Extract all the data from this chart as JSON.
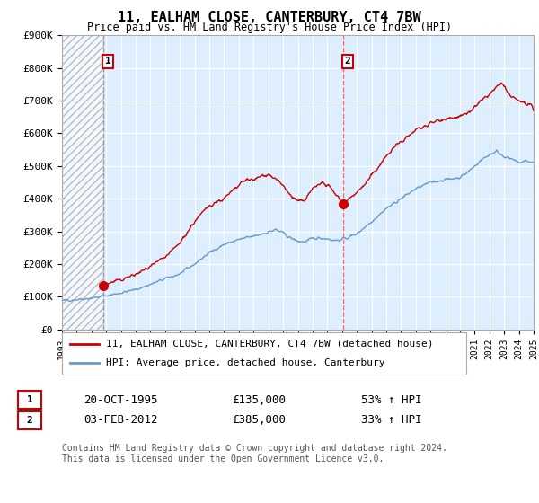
{
  "title": "11, EALHAM CLOSE, CANTERBURY, CT4 7BW",
  "subtitle": "Price paid vs. HM Land Registry's House Price Index (HPI)",
  "legend_line1": "11, EALHAM CLOSE, CANTERBURY, CT4 7BW (detached house)",
  "legend_line2": "HPI: Average price, detached house, Canterbury",
  "footnote": "Contains HM Land Registry data © Crown copyright and database right 2024.\nThis data is licensed under the Open Government Licence v3.0.",
  "transaction1_label": "1",
  "transaction1_date": "20-OCT-1995",
  "transaction1_price": "£135,000",
  "transaction1_hpi": "53% ↑ HPI",
  "transaction2_label": "2",
  "transaction2_date": "03-FEB-2012",
  "transaction2_price": "£385,000",
  "transaction2_hpi": "33% ↑ HPI",
  "sale1_year": 1995.8,
  "sale1_price": 135000,
  "sale2_year": 2012.09,
  "sale2_price": 385000,
  "vline1_year": 1995.8,
  "vline2_year": 2012.09,
  "price_line_color": "#cc0000",
  "hpi_line_color": "#6699cc",
  "vline1_color": "#aaaaaa",
  "vline2_color": "#ff6666",
  "point_color": "#cc0000",
  "ylim": [
    0,
    900000
  ],
  "yticks": [
    0,
    100000,
    200000,
    300000,
    400000,
    500000,
    600000,
    700000,
    800000,
    900000
  ],
  "xmin": 1993,
  "xmax": 2025,
  "background_color": "#ffffff",
  "chart_bg_color": "#ddeeff",
  "grid_color": "#ffffff",
  "hatch_color": "#cccccc"
}
